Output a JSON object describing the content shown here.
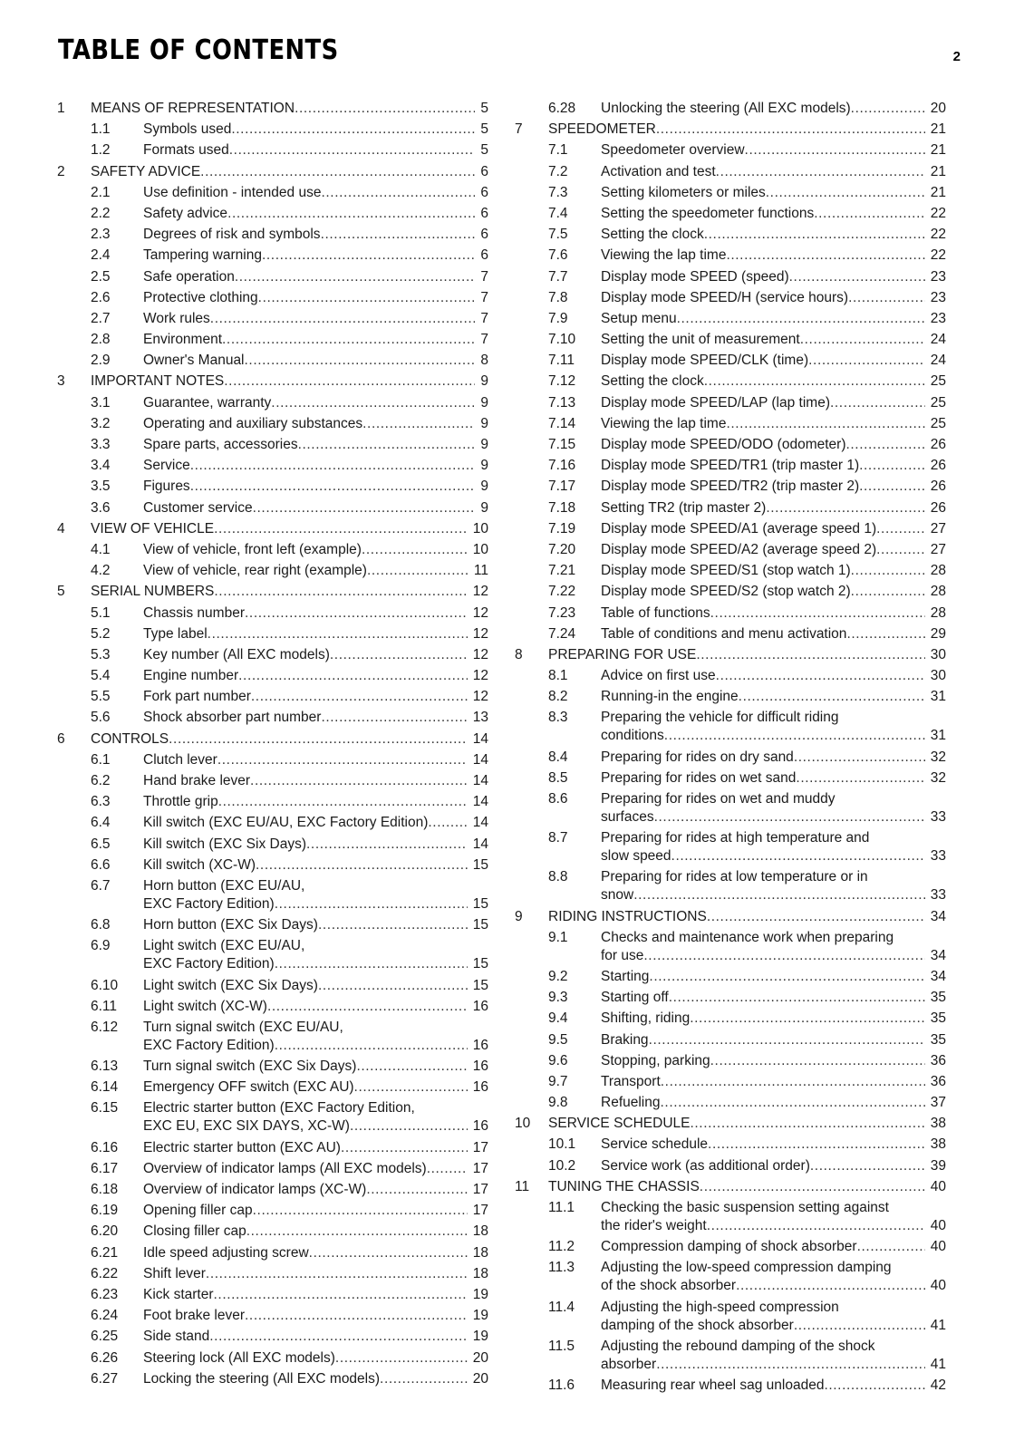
{
  "header": {
    "title": "TABLE OF CONTENTS",
    "page_number": "2"
  },
  "left": [
    {
      "num": "1",
      "title": "MEANS OF REPRESENTATION",
      "page": "5",
      "level": 0
    },
    {
      "num": "1.1",
      "title": "Symbols used",
      "page": "5",
      "level": 1
    },
    {
      "num": "1.2",
      "title": "Formats used",
      "page": "5",
      "level": 1
    },
    {
      "num": "2",
      "title": "SAFETY ADVICE",
      "page": "6",
      "level": 0
    },
    {
      "num": "2.1",
      "title": "Use definition - intended use",
      "page": "6",
      "level": 1
    },
    {
      "num": "2.2",
      "title": "Safety advice",
      "page": "6",
      "level": 1
    },
    {
      "num": "2.3",
      "title": "Degrees of risk and symbols",
      "page": "6",
      "level": 1
    },
    {
      "num": "2.4",
      "title": "Tampering warning",
      "page": "6",
      "level": 1
    },
    {
      "num": "2.5",
      "title": "Safe operation",
      "page": "7",
      "level": 1
    },
    {
      "num": "2.6",
      "title": "Protective clothing",
      "page": "7",
      "level": 1
    },
    {
      "num": "2.7",
      "title": "Work rules",
      "page": "7",
      "level": 1
    },
    {
      "num": "2.8",
      "title": "Environment",
      "page": "7",
      "level": 1
    },
    {
      "num": "2.9",
      "title": "Owner's Manual",
      "page": "8",
      "level": 1
    },
    {
      "num": "3",
      "title": "IMPORTANT NOTES",
      "page": "9",
      "level": 0
    },
    {
      "num": "3.1",
      "title": "Guarantee, warranty",
      "page": "9",
      "level": 1
    },
    {
      "num": "3.2",
      "title": "Operating and auxiliary substances",
      "page": "9",
      "level": 1
    },
    {
      "num": "3.3",
      "title": "Spare parts, accessories",
      "page": "9",
      "level": 1
    },
    {
      "num": "3.4",
      "title": "Service",
      "page": "9",
      "level": 1
    },
    {
      "num": "3.5",
      "title": "Figures",
      "page": "9",
      "level": 1
    },
    {
      "num": "3.6",
      "title": "Customer service",
      "page": "9",
      "level": 1
    },
    {
      "num": "4",
      "title": "VIEW OF VEHICLE",
      "page": "10",
      "level": 0
    },
    {
      "num": "4.1",
      "title": "View of vehicle, front left (example)",
      "page": "10",
      "level": 1
    },
    {
      "num": "4.2",
      "title": "View of vehicle, rear right (example)",
      "page": "11",
      "level": 1
    },
    {
      "num": "5",
      "title": "SERIAL NUMBERS",
      "page": "12",
      "level": 0
    },
    {
      "num": "5.1",
      "title": "Chassis number",
      "page": "12",
      "level": 1
    },
    {
      "num": "5.2",
      "title": "Type label",
      "page": "12",
      "level": 1
    },
    {
      "num": "5.3",
      "title": "Key number (All EXC models)",
      "page": "12",
      "level": 1
    },
    {
      "num": "5.4",
      "title": "Engine number",
      "page": "12",
      "level": 1
    },
    {
      "num": "5.5",
      "title": "Fork part number",
      "page": "12",
      "level": 1
    },
    {
      "num": "5.6",
      "title": "Shock absorber part number",
      "page": "13",
      "level": 1
    },
    {
      "num": "6",
      "title": "CONTROLS",
      "page": "14",
      "level": 0
    },
    {
      "num": "6.1",
      "title": "Clutch lever",
      "page": "14",
      "level": 1
    },
    {
      "num": "6.2",
      "title": "Hand brake lever",
      "page": "14",
      "level": 1
    },
    {
      "num": "6.3",
      "title": "Throttle grip",
      "page": "14",
      "level": 1
    },
    {
      "num": "6.4",
      "title": "Kill switch (EXC EU/AU, EXC Factory Edition)",
      "page": "14",
      "level": 1
    },
    {
      "num": "6.5",
      "title": "Kill switch (EXC Six Days)",
      "page": "14",
      "level": 1
    },
    {
      "num": "6.6",
      "title": "Kill switch (XC-W)",
      "page": "15",
      "level": 1
    },
    {
      "num": "6.7",
      "title": "Horn button (EXC EU/AU,",
      "title2": "EXC Factory Edition)",
      "page": "15",
      "level": 1
    },
    {
      "num": "6.8",
      "title": "Horn button (EXC Six Days)",
      "page": "15",
      "level": 1
    },
    {
      "num": "6.9",
      "title": "Light switch (EXC EU/AU,",
      "title2": "EXC Factory Edition)",
      "page": "15",
      "level": 1
    },
    {
      "num": "6.10",
      "title": "Light switch (EXC Six Days)",
      "page": "15",
      "level": 1
    },
    {
      "num": "6.11",
      "title": "Light switch (XC-W)",
      "page": "16",
      "level": 1
    },
    {
      "num": "6.12",
      "title": "Turn signal switch (EXC EU/AU,",
      "title2": "EXC Factory Edition)",
      "page": "16",
      "level": 1
    },
    {
      "num": "6.13",
      "title": "Turn signal switch (EXC Six Days)",
      "page": "16",
      "level": 1
    },
    {
      "num": "6.14",
      "title": "Emergency OFF switch (EXC AU)",
      "page": "16",
      "level": 1
    },
    {
      "num": "6.15",
      "title": "Electric starter button (EXC Factory Edition,",
      "title2": "EXC EU, EXC SIX DAYS, XC-W)",
      "page": "16",
      "level": 1
    },
    {
      "num": "6.16",
      "title": "Electric starter button (EXC AU)",
      "page": "17",
      "level": 1
    },
    {
      "num": "6.17",
      "title": "Overview of indicator lamps (All EXC models)",
      "page": "17",
      "level": 1
    },
    {
      "num": "6.18",
      "title": "Overview of indicator lamps (XC-W)",
      "page": "17",
      "level": 1
    },
    {
      "num": "6.19",
      "title": "Opening filler cap",
      "page": "17",
      "level": 1
    },
    {
      "num": "6.20",
      "title": "Closing filler cap",
      "page": "18",
      "level": 1
    },
    {
      "num": "6.21",
      "title": "Idle speed adjusting screw",
      "page": "18",
      "level": 1
    },
    {
      "num": "6.22",
      "title": "Shift lever",
      "page": "18",
      "level": 1
    },
    {
      "num": "6.23",
      "title": "Kick starter",
      "page": "19",
      "level": 1
    },
    {
      "num": "6.24",
      "title": "Foot brake lever",
      "page": "19",
      "level": 1
    },
    {
      "num": "6.25",
      "title": "Side stand",
      "page": "19",
      "level": 1
    },
    {
      "num": "6.26",
      "title": "Steering lock (All EXC models)",
      "page": "20",
      "level": 1
    },
    {
      "num": "6.27",
      "title": "Locking the steering (All EXC models)",
      "page": "20",
      "level": 1
    }
  ],
  "right": [
    {
      "num": "6.28",
      "title": "Unlocking the steering (All EXC models)",
      "page": "20",
      "level": 1
    },
    {
      "num": "7",
      "title": "SPEEDOMETER",
      "page": "21",
      "level": 0
    },
    {
      "num": "7.1",
      "title": "Speedometer overview",
      "page": "21",
      "level": 1
    },
    {
      "num": "7.2",
      "title": "Activation and test",
      "page": "21",
      "level": 1
    },
    {
      "num": "7.3",
      "title": "Setting kilometers or miles",
      "page": "21",
      "level": 1
    },
    {
      "num": "7.4",
      "title": "Setting the speedometer functions",
      "page": "22",
      "level": 1
    },
    {
      "num": "7.5",
      "title": "Setting the clock",
      "page": "22",
      "level": 1
    },
    {
      "num": "7.6",
      "title": "Viewing the lap time",
      "page": "22",
      "level": 1
    },
    {
      "num": "7.7",
      "title": "Display mode SPEED (speed)",
      "page": "23",
      "level": 1
    },
    {
      "num": "7.8",
      "title": "Display mode SPEED/H (service hours)",
      "page": "23",
      "level": 1
    },
    {
      "num": "7.9",
      "title": "Setup menu",
      "page": "23",
      "level": 1
    },
    {
      "num": "7.10",
      "title": "Setting the unit of measurement",
      "page": "24",
      "level": 1
    },
    {
      "num": "7.11",
      "title": "Display mode SPEED/CLK (time)",
      "page": "24",
      "level": 1
    },
    {
      "num": "7.12",
      "title": "Setting the clock",
      "page": "25",
      "level": 1
    },
    {
      "num": "7.13",
      "title": "Display mode SPEED/LAP (lap time)",
      "page": "25",
      "level": 1
    },
    {
      "num": "7.14",
      "title": "Viewing the lap time",
      "page": "25",
      "level": 1
    },
    {
      "num": "7.15",
      "title": "Display mode SPEED/ODO (odometer)",
      "page": "26",
      "level": 1
    },
    {
      "num": "7.16",
      "title": "Display mode SPEED/TR1 (trip master 1)",
      "page": "26",
      "level": 1
    },
    {
      "num": "7.17",
      "title": "Display mode SPEED/TR2 (trip master 2)",
      "page": "26",
      "level": 1
    },
    {
      "num": "7.18",
      "title": "Setting TR2 (trip master 2)",
      "page": "26",
      "level": 1
    },
    {
      "num": "7.19",
      "title": "Display mode SPEED/A1 (average speed 1)",
      "page": "27",
      "level": 1
    },
    {
      "num": "7.20",
      "title": "Display mode SPEED/A2 (average speed 2)",
      "page": "27",
      "level": 1
    },
    {
      "num": "7.21",
      "title": "Display mode SPEED/S1 (stop watch 1)",
      "page": "28",
      "level": 1
    },
    {
      "num": "7.22",
      "title": "Display mode SPEED/S2 (stop watch 2)",
      "page": "28",
      "level": 1
    },
    {
      "num": "7.23",
      "title": "Table of functions",
      "page": "28",
      "level": 1
    },
    {
      "num": "7.24",
      "title": "Table of conditions and menu activation",
      "page": "29",
      "level": 1
    },
    {
      "num": "8",
      "title": "PREPARING FOR USE",
      "page": "30",
      "level": 0
    },
    {
      "num": "8.1",
      "title": "Advice on first use",
      "page": "30",
      "level": 1
    },
    {
      "num": "8.2",
      "title": "Running-in the engine",
      "page": "31",
      "level": 1
    },
    {
      "num": "8.3",
      "title": "Preparing the vehicle for difficult riding",
      "title2": "conditions",
      "page": "31",
      "level": 1
    },
    {
      "num": "8.4",
      "title": "Preparing for rides on dry sand",
      "page": "32",
      "level": 1
    },
    {
      "num": "8.5",
      "title": "Preparing for rides on wet sand",
      "page": "32",
      "level": 1
    },
    {
      "num": "8.6",
      "title": "Preparing for rides on wet and muddy",
      "title2": "surfaces",
      "page": "33",
      "level": 1
    },
    {
      "num": "8.7",
      "title": "Preparing for rides at high temperature and",
      "title2": "slow speed",
      "page": "33",
      "level": 1
    },
    {
      "num": "8.8",
      "title": "Preparing for rides at low temperature or in",
      "title2": "snow",
      "page": "33",
      "level": 1
    },
    {
      "num": "9",
      "title": "RIDING INSTRUCTIONS",
      "page": "34",
      "level": 0
    },
    {
      "num": "9.1",
      "title": "Checks and maintenance work when preparing",
      "title2": "for use",
      "page": "34",
      "level": 1
    },
    {
      "num": "9.2",
      "title": "Starting",
      "page": "34",
      "level": 1
    },
    {
      "num": "9.3",
      "title": "Starting off",
      "page": "35",
      "level": 1
    },
    {
      "num": "9.4",
      "title": "Shifting, riding",
      "page": "35",
      "level": 1
    },
    {
      "num": "9.5",
      "title": "Braking",
      "page": "35",
      "level": 1
    },
    {
      "num": "9.6",
      "title": "Stopping, parking",
      "page": "36",
      "level": 1
    },
    {
      "num": "9.7",
      "title": "Transport",
      "page": "36",
      "level": 1
    },
    {
      "num": "9.8",
      "title": "Refueling",
      "page": "37",
      "level": 1
    },
    {
      "num": "10",
      "title": "SERVICE SCHEDULE",
      "page": "38",
      "level": 0
    },
    {
      "num": "10.1",
      "title": "Service schedule",
      "page": "38",
      "level": 1
    },
    {
      "num": "10.2",
      "title": "Service work (as additional order)",
      "page": "39",
      "level": 1
    },
    {
      "num": "11",
      "title": "TUNING THE CHASSIS",
      "page": "40",
      "level": 0
    },
    {
      "num": "11.1",
      "title": "Checking the basic suspension setting against",
      "title2": "the rider's weight",
      "page": "40",
      "level": 1
    },
    {
      "num": "11.2",
      "title": "Compression damping of shock absorber",
      "page": "40",
      "level": 1
    },
    {
      "num": "11.3",
      "title": "Adjusting the low-speed compression damping",
      "title2": "of the shock absorber",
      "page": "40",
      "level": 1
    },
    {
      "num": "11.4",
      "title": "Adjusting the high-speed compression",
      "title2": "damping of the shock absorber",
      "page": "41",
      "level": 1
    },
    {
      "num": "11.5",
      "title": "Adjusting the rebound damping of the shock",
      "title2": "absorber",
      "page": "41",
      "level": 1
    },
    {
      "num": "11.6",
      "title": "Measuring rear wheel sag unloaded",
      "page": "42",
      "level": 1
    }
  ]
}
